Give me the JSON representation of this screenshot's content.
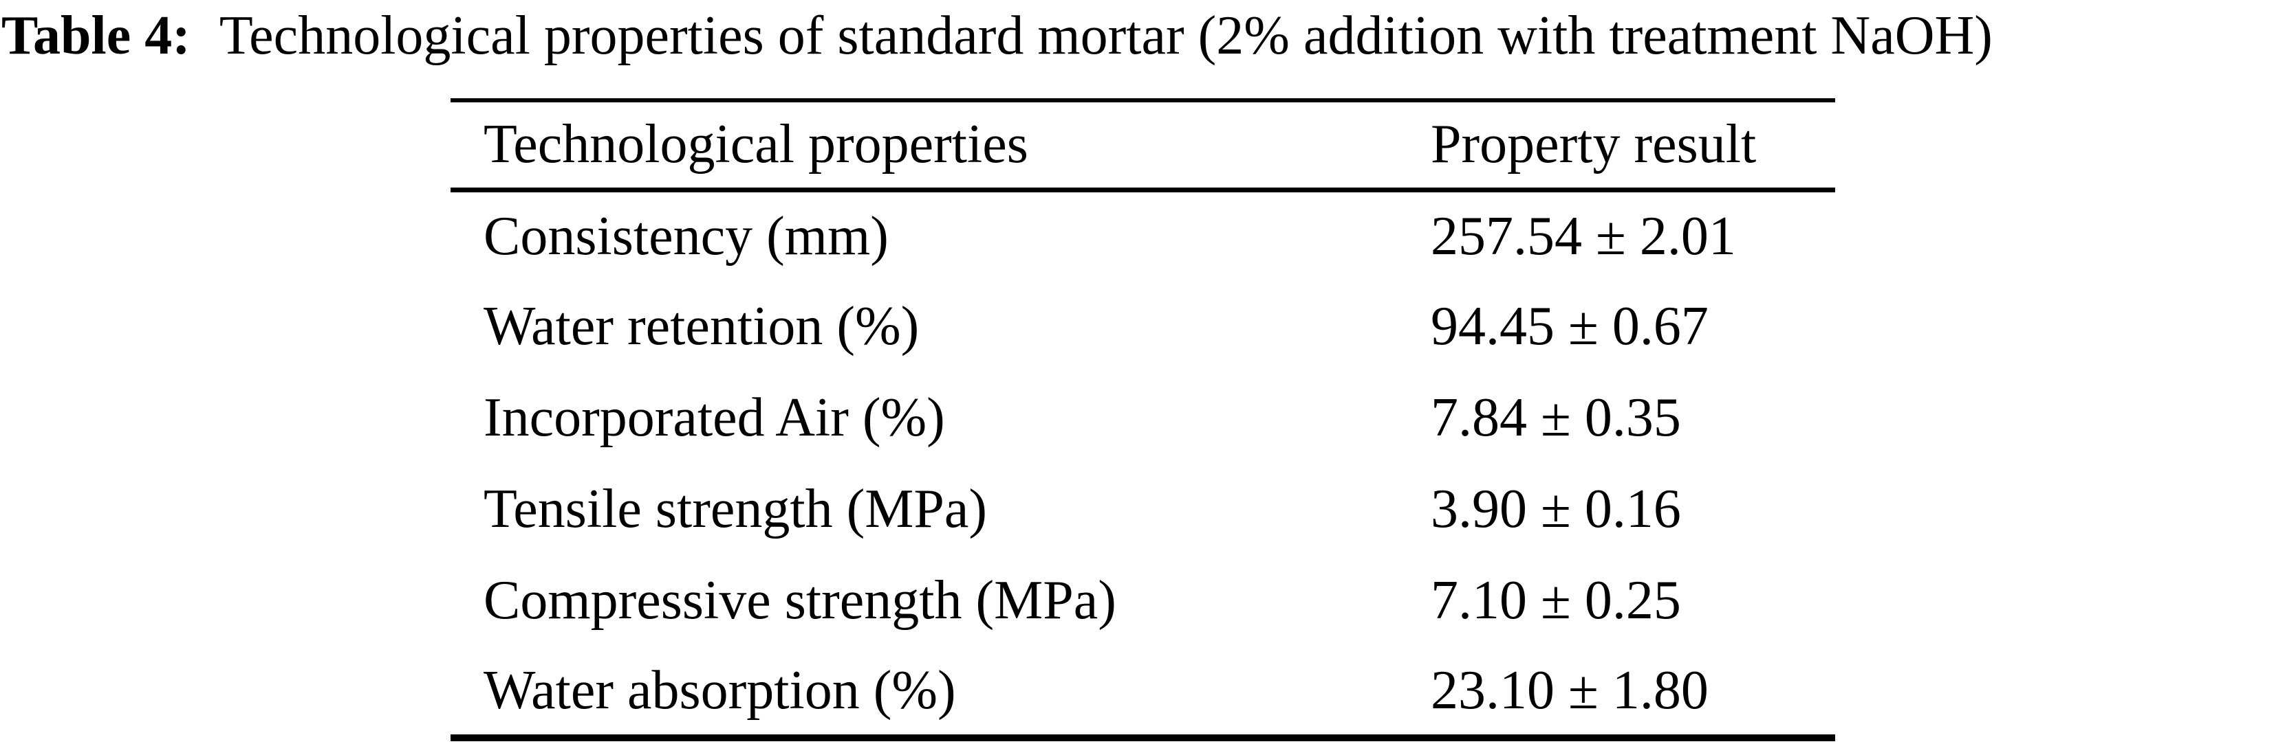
{
  "caption": {
    "label": "Table 4:",
    "text": "Technological properties of standard mortar (2% addition with treatment NaOH)"
  },
  "table": {
    "columns": [
      "Technological properties",
      "Property result"
    ],
    "rows": [
      {
        "property": "Consistency (mm)",
        "result": "257.54 ± 2.01"
      },
      {
        "property": "Water retention (%)",
        "result": "94.45 ± 0.67"
      },
      {
        "property": "Incorporated Air (%)",
        "result": "7.84 ± 0.35"
      },
      {
        "property": "Tensile strength (MPa)",
        "result": "3.90 ± 0.16"
      },
      {
        "property": "Compressive strength (MPa)",
        "result": "7.10 ± 0.25"
      },
      {
        "property": "Water absorption (%)",
        "result": "23.10 ± 1.80"
      }
    ]
  },
  "colors": {
    "text": "#000000",
    "background": "#ffffff",
    "rule": "#000000"
  }
}
